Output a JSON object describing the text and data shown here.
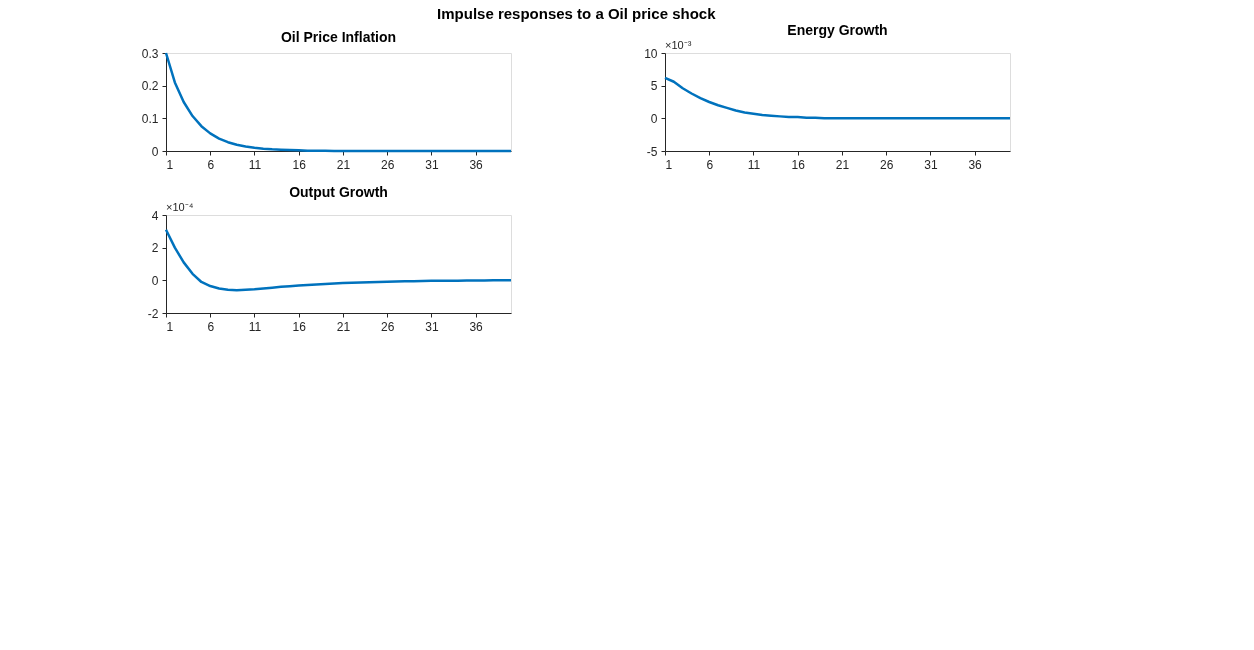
{
  "chart_data": [
    {
      "type": "line",
      "title": "Oil Price Inflation",
      "annotations": [
        "Impulse responses to a Oil price shock"
      ],
      "x": [
        1,
        2,
        3,
        4,
        5,
        6,
        7,
        8,
        9,
        10,
        11,
        12,
        13,
        14,
        15,
        16,
        17,
        18,
        19,
        20,
        21,
        22,
        23,
        24,
        25,
        26,
        27,
        28,
        29,
        30,
        31,
        32,
        33,
        34,
        35,
        36,
        37,
        38,
        39,
        40
      ],
      "series": [
        {
          "color": "#0072bd",
          "values": [
            0.3,
            0.21,
            0.15,
            0.107,
            0.076,
            0.054,
            0.038,
            0.027,
            0.019,
            0.014,
            0.01,
            0.007,
            0.005,
            0.004,
            0.003,
            0.002,
            0.001,
            0.001,
            0.001,
            0,
            0,
            0,
            0,
            0,
            0,
            0,
            0,
            0,
            0,
            0,
            0,
            0,
            0,
            0,
            0,
            0,
            0,
            0,
            0,
            0
          ]
        }
      ],
      "xlim": [
        1,
        40
      ],
      "xticks": [
        1,
        6,
        11,
        16,
        21,
        26,
        31,
        36
      ],
      "ylim": [
        0,
        0.3
      ],
      "yticks": [
        0,
        0.1,
        0.2,
        0.3
      ],
      "grid": false,
      "line_style": "solid",
      "marker": "none"
    },
    {
      "type": "line",
      "title": "Energy Growth",
      "annotations": [
        "×10⁻³"
      ],
      "x": [
        1,
        2,
        3,
        4,
        5,
        6,
        7,
        8,
        9,
        10,
        11,
        12,
        13,
        14,
        15,
        16,
        17,
        18,
        19,
        20,
        21,
        22,
        23,
        24,
        25,
        26,
        27,
        28,
        29,
        30,
        31,
        32,
        33,
        34,
        35,
        36,
        37,
        38,
        39,
        40
      ],
      "series": [
        {
          "color": "#0072bd",
          "values": [
            6.2,
            5.6,
            4.6,
            3.8,
            3.1,
            2.5,
            2.0,
            1.6,
            1.2,
            0.9,
            0.7,
            0.5,
            0.4,
            0.3,
            0.2,
            0.2,
            0.1,
            0.1,
            0,
            0,
            0,
            0,
            0,
            0,
            0,
            0,
            0,
            0,
            0,
            0,
            0,
            0,
            0,
            0,
            0,
            0,
            0,
            0,
            0,
            0
          ]
        }
      ],
      "xlim": [
        1,
        40
      ],
      "xticks": [
        1,
        6,
        11,
        16,
        21,
        26,
        31,
        36
      ],
      "ylim": [
        -5,
        10
      ],
      "yticks": [
        -5,
        0,
        5,
        10
      ],
      "grid": false,
      "line_style": "solid",
      "marker": "none"
    },
    {
      "type": "line",
      "title": "Output Growth",
      "annotations": [
        "×10⁻⁴"
      ],
      "x": [
        1,
        2,
        3,
        4,
        5,
        6,
        7,
        8,
        9,
        10,
        11,
        12,
        13,
        14,
        15,
        16,
        17,
        18,
        19,
        20,
        21,
        22,
        23,
        24,
        25,
        26,
        27,
        28,
        29,
        30,
        31,
        32,
        33,
        34,
        35,
        36,
        37,
        38,
        39,
        40
      ],
      "series": [
        {
          "color": "#0072bd",
          "values": [
            3.1,
            2.0,
            1.1,
            0.4,
            -0.1,
            -0.35,
            -0.5,
            -0.58,
            -0.6,
            -0.58,
            -0.55,
            -0.5,
            -0.45,
            -0.4,
            -0.36,
            -0.32,
            -0.28,
            -0.25,
            -0.22,
            -0.2,
            -0.17,
            -0.15,
            -0.13,
            -0.11,
            -0.1,
            -0.08,
            -0.07,
            -0.06,
            -0.05,
            -0.04,
            -0.03,
            -0.03,
            -0.02,
            -0.02,
            -0.01,
            -0.01,
            -0.01,
            0,
            0,
            0
          ]
        }
      ],
      "xlim": [
        1,
        40
      ],
      "xticks": [
        1,
        6,
        11,
        16,
        21,
        26,
        31,
        36
      ],
      "ylim": [
        -2,
        4
      ],
      "yticks": [
        -2,
        0,
        2,
        4
      ],
      "grid": false,
      "line_style": "solid",
      "marker": "none"
    }
  ]
}
